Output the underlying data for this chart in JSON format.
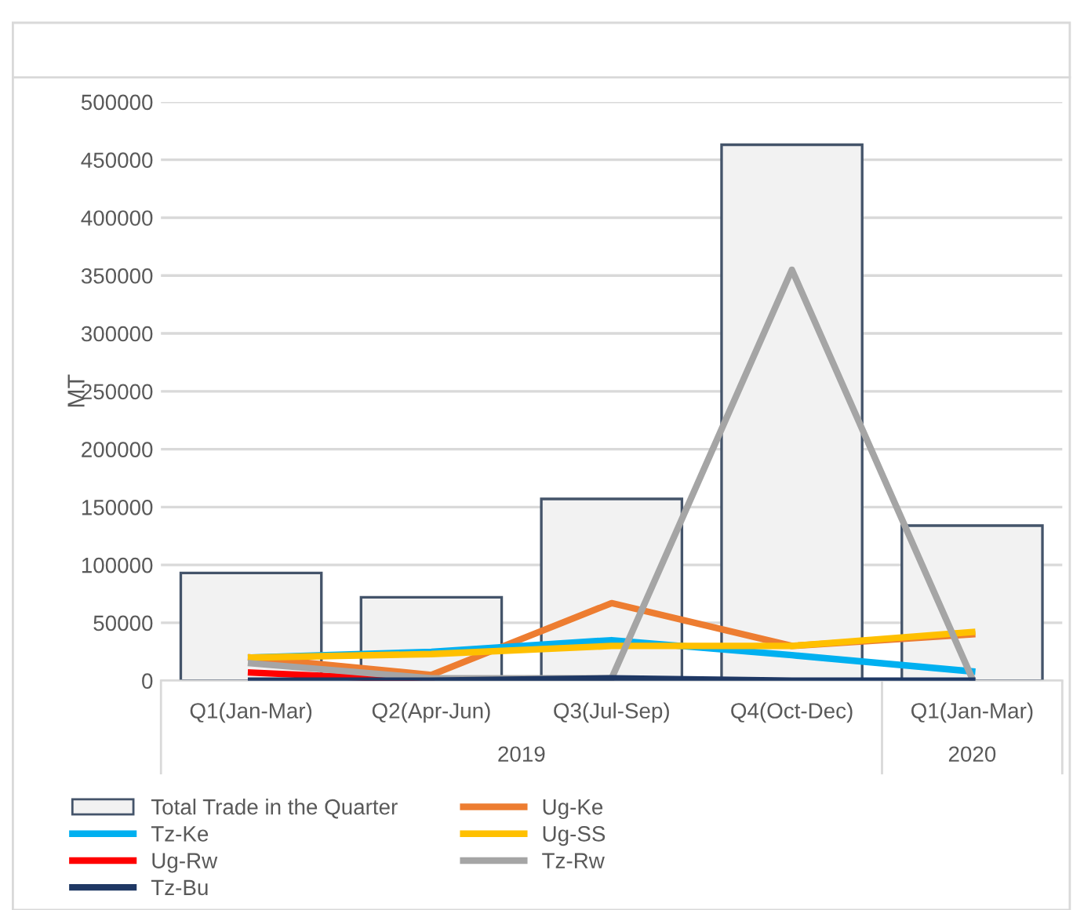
{
  "chart_data": {
    "type": "bar",
    "ylabel": "MT",
    "categories": [
      "Q1(Jan-Mar)",
      "Q2(Apr-Jun)",
      "Q3(Jul-Sep)",
      "Q4(Oct-Dec)",
      "Q1(Jan-Mar)"
    ],
    "series": [
      {
        "name": "Total Trade in the Quarter",
        "color": "#f2f2f2",
        "values": [
          93000,
          72000,
          157000,
          463000,
          134000
        ]
      },
      {
        "name": "Ug-Ke",
        "type": "line",
        "color": "#ed7d31",
        "values": [
          20000,
          5000,
          67000,
          30000,
          40000
        ]
      },
      {
        "name": "Tz-Ke",
        "type": "line",
        "color": "#00b0f0",
        "values": [
          20000,
          25000,
          35000,
          22000,
          8000
        ]
      },
      {
        "name": "Ug-SS",
        "type": "line",
        "color": "#ffc000",
        "values": [
          20000,
          23000,
          30000,
          30000,
          42000
        ]
      },
      {
        "name": "Ug-Rw",
        "type": "line",
        "color": "#ff0000",
        "values": [
          7000,
          0,
          null,
          null,
          null
        ]
      },
      {
        "name": "Tz-Rw",
        "type": "line",
        "color": "#a5a5a5",
        "values": [
          15000,
          2000,
          2000,
          355000,
          2000
        ]
      },
      {
        "name": "Tz-Bu",
        "type": "line",
        "color": "#1f3864",
        "values": [
          0,
          0,
          2000,
          0,
          0
        ]
      }
    ],
    "annotations": [
      "2019",
      "2020"
    ],
    "ylim": [
      0,
      500000
    ],
    "yticks": [
      0,
      50000,
      100000,
      150000,
      200000,
      250000,
      300000,
      350000,
      400000,
      450000,
      500000
    ],
    "grid": "y",
    "legend": "bottom"
  }
}
